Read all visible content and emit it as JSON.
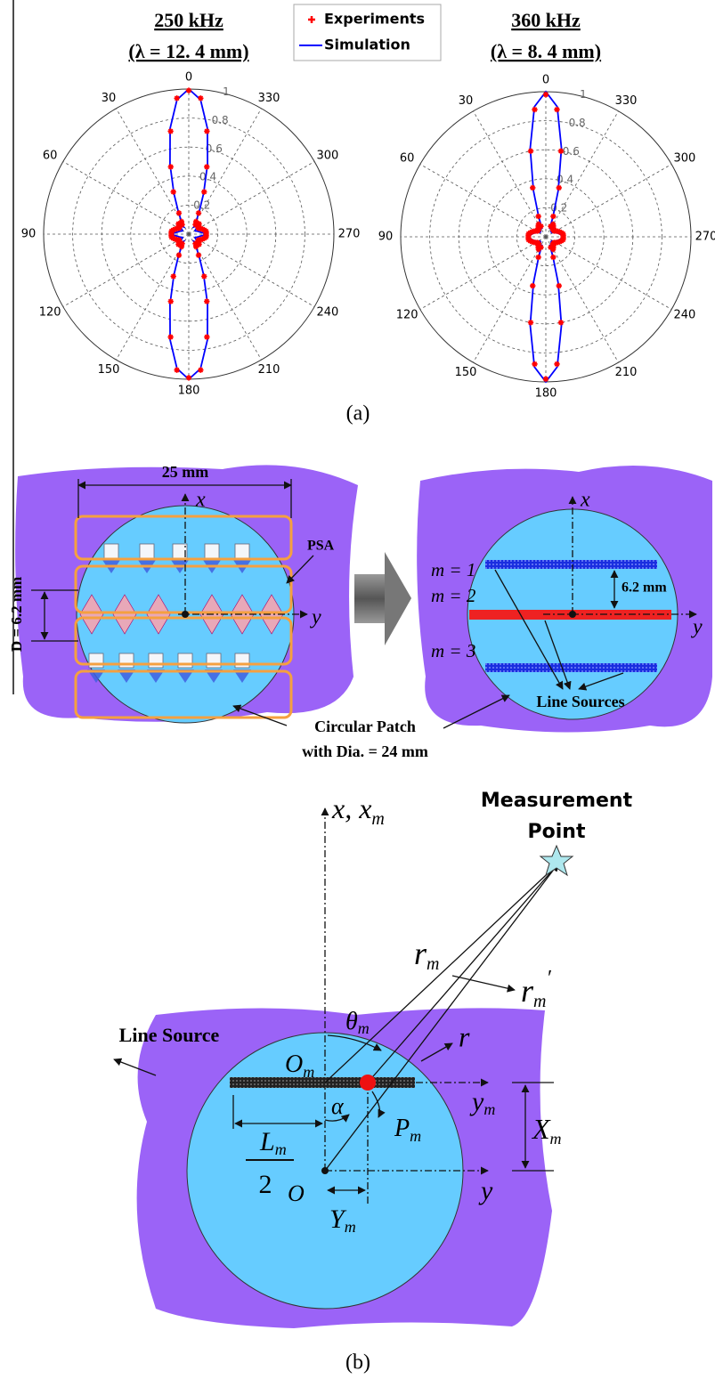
{
  "chart_data": [
    {
      "type": "polar",
      "title": "250 kHz",
      "subtitle": "(λ = 12. 4 mm)",
      "theta": [
        0,
        5,
        10,
        15,
        20,
        25,
        30,
        35,
        40,
        45,
        50,
        55,
        60,
        65,
        70,
        75,
        80,
        85,
        90,
        95,
        100,
        105,
        110,
        115,
        120,
        125,
        130,
        135,
        140,
        145,
        150,
        155,
        160,
        165,
        170,
        175,
        180,
        185,
        190,
        195,
        200,
        205,
        210,
        215,
        220,
        225,
        230,
        235,
        240,
        245,
        250,
        255,
        260,
        265,
        270,
        275,
        280,
        285,
        290,
        295,
        300,
        305,
        310,
        315,
        320,
        325,
        330,
        335,
        340,
        345,
        350,
        355
      ],
      "series": [
        {
          "name": "Experiments",
          "style": "markers",
          "color": "#ff0000",
          "values": [
            0.99,
            0.94,
            0.72,
            0.48,
            0.31,
            0.16,
            0.1,
            0.08,
            0.09,
            0.1,
            0.09,
            0.08,
            0.08,
            0.09,
            0.1,
            0.11,
            0.12,
            0.12,
            0.12,
            0.12,
            0.12,
            0.11,
            0.1,
            0.09,
            0.08,
            0.08,
            0.09,
            0.1,
            0.09,
            0.08,
            0.1,
            0.16,
            0.31,
            0.48,
            0.72,
            0.94,
            0.99,
            0.94,
            0.72,
            0.48,
            0.31,
            0.16,
            0.1,
            0.08,
            0.09,
            0.1,
            0.09,
            0.08,
            0.08,
            0.09,
            0.1,
            0.11,
            0.12,
            0.12,
            0.12,
            0.12,
            0.12,
            0.11,
            0.1,
            0.09,
            0.08,
            0.08,
            0.09,
            0.1,
            0.09,
            0.08,
            0.1,
            0.16,
            0.31,
            0.48,
            0.72,
            0.94
          ]
        },
        {
          "name": "Simulation",
          "style": "line",
          "color": "#0000ff",
          "values": [
            1,
            0.93,
            0.74,
            0.5,
            0.3,
            0.17,
            0.1,
            0.06,
            0.07,
            0.08,
            0.07,
            0.06,
            0.05,
            0.05,
            0.06,
            0.07,
            0.08,
            0.1,
            0.11,
            0.1,
            0.08,
            0.07,
            0.06,
            0.05,
            0.05,
            0.06,
            0.07,
            0.08,
            0.07,
            0.06,
            0.1,
            0.17,
            0.3,
            0.5,
            0.74,
            0.93,
            1,
            0.93,
            0.74,
            0.5,
            0.3,
            0.17,
            0.1,
            0.06,
            0.07,
            0.08,
            0.07,
            0.06,
            0.05,
            0.05,
            0.06,
            0.07,
            0.08,
            0.1,
            0.11,
            0.1,
            0.08,
            0.07,
            0.06,
            0.05,
            0.05,
            0.06,
            0.07,
            0.08,
            0.07,
            0.06,
            0.1,
            0.17,
            0.3,
            0.5,
            0.74,
            0.93
          ]
        }
      ],
      "rlim": [
        0,
        1
      ],
      "rticks": [
        0.2,
        0.4,
        0.6,
        0.8,
        1
      ],
      "thetaticks": [
        0,
        30,
        60,
        90,
        120,
        150,
        180,
        210,
        240,
        270,
        300,
        330
      ],
      "grid": true
    },
    {
      "type": "polar",
      "title": "360 kHz",
      "subtitle": "(λ = 8. 4 mm)",
      "theta": [
        0,
        5,
        10,
        15,
        20,
        25,
        30,
        35,
        40,
        45,
        50,
        55,
        60,
        65,
        70,
        75,
        80,
        85,
        90,
        95,
        100,
        105,
        110,
        115,
        120,
        125,
        130,
        135,
        140,
        145,
        150,
        155,
        160,
        165,
        170,
        175,
        180,
        185,
        190,
        195,
        200,
        205,
        210,
        215,
        220,
        225,
        230,
        235,
        240,
        245,
        250,
        255,
        260,
        265,
        270,
        275,
        280,
        285,
        290,
        295,
        300,
        305,
        310,
        315,
        320,
        325,
        330,
        335,
        340,
        345,
        350,
        355
      ],
      "series": [
        {
          "style": "markers",
          "color": "#ff0000",
          "values": [
            0.98,
            0.88,
            0.6,
            0.35,
            0.15,
            0.08,
            0.1,
            0.09,
            0.08,
            0.07,
            0.07,
            0.07,
            0.08,
            0.09,
            0.1,
            0.11,
            0.12,
            0.12,
            0.12,
            0.12,
            0.12,
            0.11,
            0.1,
            0.09,
            0.08,
            0.07,
            0.07,
            0.07,
            0.08,
            0.09,
            0.1,
            0.08,
            0.15,
            0.35,
            0.6,
            0.88,
            0.98,
            0.88,
            0.6,
            0.35,
            0.15,
            0.08,
            0.1,
            0.09,
            0.08,
            0.07,
            0.07,
            0.07,
            0.08,
            0.09,
            0.1,
            0.11,
            0.12,
            0.12,
            0.12,
            0.12,
            0.12,
            0.11,
            0.1,
            0.09,
            0.08,
            0.07,
            0.07,
            0.07,
            0.08,
            0.09,
            0.1,
            0.08,
            0.15,
            0.35,
            0.6,
            0.88
          ]
        },
        {
          "style": "line",
          "color": "#0000ff",
          "values": [
            1,
            0.9,
            0.62,
            0.33,
            0.14,
            0.06,
            0.09,
            0.08,
            0.06,
            0.05,
            0.05,
            0.05,
            0.06,
            0.07,
            0.08,
            0.09,
            0.1,
            0.11,
            0.12,
            0.11,
            0.1,
            0.09,
            0.08,
            0.07,
            0.06,
            0.05,
            0.05,
            0.05,
            0.06,
            0.08,
            0.09,
            0.06,
            0.14,
            0.33,
            0.62,
            0.9,
            1,
            0.9,
            0.62,
            0.33,
            0.14,
            0.06,
            0.09,
            0.08,
            0.06,
            0.05,
            0.05,
            0.05,
            0.06,
            0.07,
            0.08,
            0.09,
            0.1,
            0.11,
            0.12,
            0.11,
            0.1,
            0.09,
            0.08,
            0.07,
            0.06,
            0.05,
            0.05,
            0.05,
            0.06,
            0.08,
            0.09,
            0.06,
            0.14,
            0.33,
            0.62,
            0.9
          ]
        }
      ],
      "rlim": [
        0,
        1
      ],
      "rticks": [
        0.2,
        0.4,
        0.6,
        0.8,
        1
      ],
      "thetaticks": [
        0,
        30,
        60,
        90,
        120,
        150,
        180,
        210,
        240,
        270,
        300,
        330
      ],
      "grid": true
    }
  ],
  "figure_labels": {
    "a": "(a)",
    "b": "(b)"
  },
  "psa_diagram": {
    "width_label": "25 mm",
    "x_axis": "x",
    "y_axis": "y",
    "psa_label": "PSA",
    "spacing_label": "D = 6.2 mm",
    "patch_label": [
      "Circular Patch",
      "with Dia. = 24 mm"
    ]
  },
  "line_sources_diagram": {
    "x_axis": "x",
    "y_axis": "y",
    "rows": [
      "m = 1",
      "m = 2",
      "m = 3"
    ],
    "spacing_label": "6.2 mm",
    "sources_label": "Line Sources"
  },
  "geometry_diagram": {
    "measurement_point": [
      "Measurement",
      "Point"
    ],
    "x_axis": {
      "text": "x, x",
      "sub": "m"
    },
    "theta": {
      "text": "θ",
      "sub": "m"
    },
    "r_m": {
      "text": "r",
      "sub": "m"
    },
    "r_m_prime": {
      "text": "r",
      "sub": "m",
      "prime": "′"
    },
    "r": "r",
    "line_source": "Line Source",
    "o_m": {
      "text": "O",
      "sub": "m"
    },
    "alpha": "α",
    "p_m": {
      "text": "P",
      "sub": "m"
    },
    "half_length": {
      "numerator": {
        "text": "L",
        "sub": "m"
      },
      "denominator": "2"
    },
    "y_m": {
      "text": "y",
      "sub": "m"
    },
    "x_m_offset": {
      "text": "X",
      "sub": "m"
    },
    "origin": "O",
    "y_m_offset": {
      "text": "Y",
      "sub": "m"
    },
    "y_axis": "y"
  }
}
